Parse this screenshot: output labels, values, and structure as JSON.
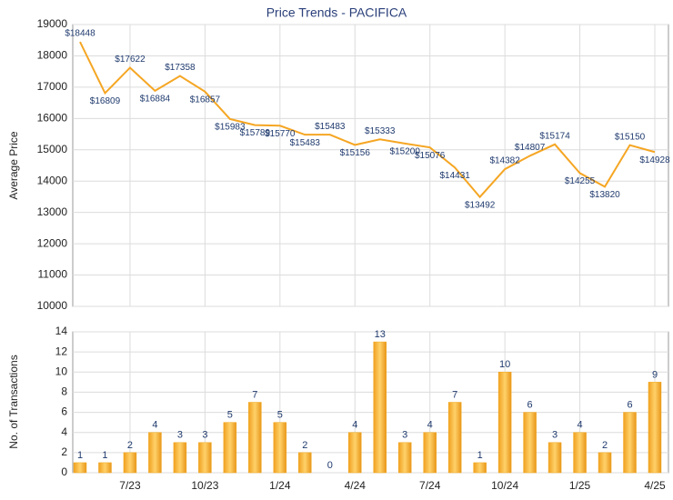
{
  "chart_data": [
    {
      "type": "line",
      "title": "Price Trends - PACIFICA",
      "ylabel": "Average Price",
      "categories": [
        null,
        null,
        "7/23",
        null,
        null,
        "10/23",
        null,
        null,
        "1/24",
        null,
        null,
        "4/24",
        null,
        null,
        "7/24",
        null,
        null,
        "10/24",
        null,
        null,
        "1/25",
        null,
        null,
        "4/25"
      ],
      "values": [
        18448,
        16809,
        17622,
        16884,
        17358,
        16857,
        15983,
        15789,
        15770,
        15483,
        15483,
        15156,
        15333,
        15200,
        15076,
        14431,
        13492,
        14382,
        14807,
        15174,
        14255,
        13820,
        15150,
        14928
      ],
      "value_labels": [
        "$18448",
        "$16809",
        "$17622",
        "$16884",
        "$17358",
        "$16857",
        "$15983",
        "$15789",
        "$15770",
        "$15483",
        "$15483",
        "$15156",
        "$15333",
        "$15200",
        "$15076",
        "$14431",
        "$13492",
        "$14382",
        "$14807",
        "$15174",
        "$14255",
        "$13820",
        "$15150",
        "$14928"
      ],
      "ylim": [
        10000,
        19000
      ],
      "yticks": [
        10000,
        11000,
        12000,
        13000,
        14000,
        15000,
        16000,
        17000,
        18000,
        19000
      ],
      "color": "#f5a623",
      "grid": true
    },
    {
      "type": "bar",
      "ylabel": "No. of Transactions",
      "categories": [
        null,
        null,
        "7/23",
        null,
        null,
        "10/23",
        null,
        null,
        "1/24",
        null,
        null,
        "4/24",
        null,
        null,
        "7/24",
        null,
        null,
        "10/24",
        null,
        null,
        "1/25",
        null,
        null,
        "4/25"
      ],
      "values": [
        1,
        1,
        2,
        4,
        3,
        3,
        5,
        7,
        5,
        2,
        0,
        4,
        13,
        3,
        4,
        7,
        1,
        10,
        6,
        3,
        4,
        2,
        6,
        9
      ],
      "ylim": [
        0,
        14
      ],
      "yticks": [
        0,
        2,
        4,
        6,
        8,
        10,
        12,
        14
      ],
      "color": "#f2a71b",
      "grid": true
    }
  ]
}
